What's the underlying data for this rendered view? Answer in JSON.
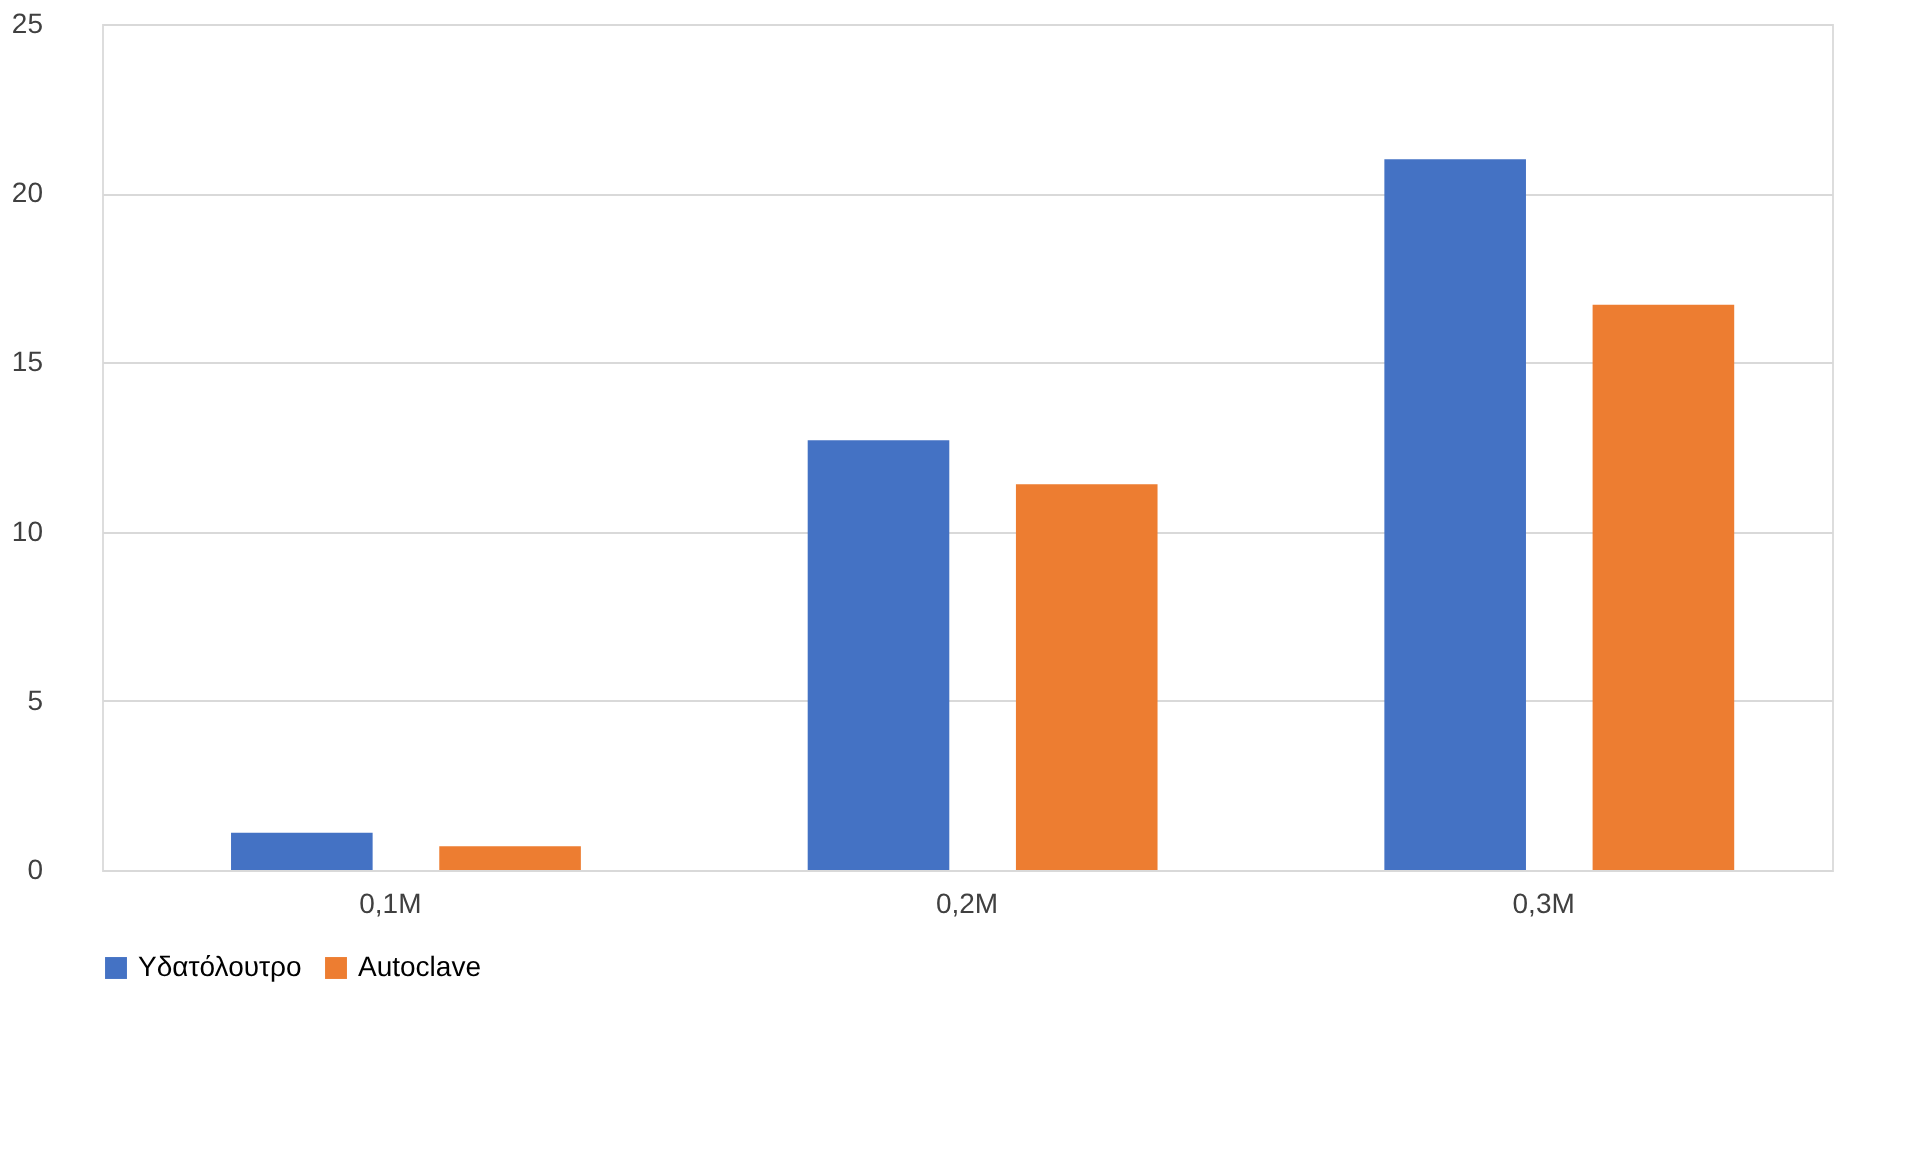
{
  "chart_data": {
    "type": "bar",
    "categories": [
      "0,1M",
      "0,2M",
      "0,3M"
    ],
    "series": [
      {
        "name": "Υδατόλουτρο",
        "color": "#4472c4",
        "values": [
          1.1,
          12.7,
          21.0
        ]
      },
      {
        "name": "Autoclave",
        "color": "#ed7d31",
        "values": [
          0.7,
          11.4,
          16.7
        ]
      }
    ],
    "ylim": [
      0,
      25
    ],
    "yticks": [
      0,
      5,
      10,
      15,
      20,
      25
    ],
    "grid": "y",
    "legend": "bottom"
  }
}
